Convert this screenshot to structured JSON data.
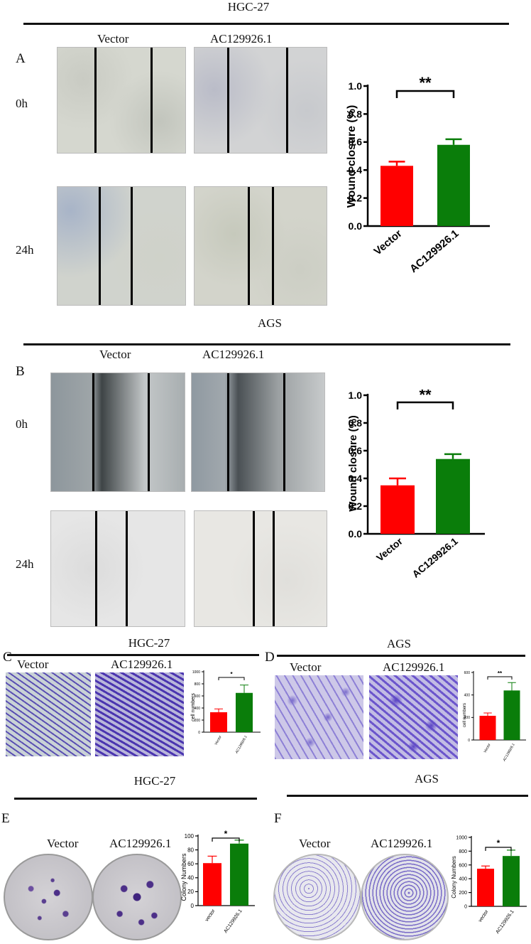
{
  "colors": {
    "vector": "#ff0000",
    "ac": "#0a7d0a"
  },
  "panelA": {
    "title": "HGC-27",
    "label": "A",
    "col1": "Vector",
    "col2": "AC129926.1",
    "row1": "0h",
    "row2": "24h",
    "chart": {
      "type": "bar",
      "ylabel": "Wound closure (%)",
      "categories": [
        "Vector",
        "AC129926.1"
      ],
      "values": [
        0.43,
        0.58
      ],
      "errors": [
        0.03,
        0.04
      ],
      "ylim": [
        0,
        1.0
      ],
      "yticks": [
        "0.0",
        "0.2",
        "0.4",
        "0.6",
        "0.8",
        "1.0"
      ],
      "sig": "**"
    }
  },
  "panelB": {
    "title": "AGS",
    "label": "B",
    "col1": "Vector",
    "col2": "AC129926.1",
    "row1": "0h",
    "row2": "24h",
    "chart": {
      "type": "bar",
      "ylabel": "Wound closure (%)",
      "categories": [
        "Vector",
        "AC129926.1"
      ],
      "values": [
        0.35,
        0.54
      ],
      "errors": [
        0.05,
        0.035
      ],
      "ylim": [
        0,
        1.0
      ],
      "yticks": [
        "0.0",
        "0.2",
        "0.4",
        "0.6",
        "0.8",
        "1.0"
      ],
      "sig": "**"
    }
  },
  "panelC": {
    "title": "HGC-27",
    "label": "C",
    "col1": "Vector",
    "col2": "AC129926.1",
    "chart": {
      "type": "bar",
      "ylabel": "cell numbers",
      "categories": [
        "Vector",
        "AC129926.1"
      ],
      "values": [
        330,
        650
      ],
      "errors": [
        55,
        130
      ],
      "ylim": [
        0,
        1000
      ],
      "yticks": [
        "0",
        "200",
        "400",
        "600",
        "800",
        "1000"
      ],
      "sig": "*"
    }
  },
  "panelD": {
    "title": "AGS",
    "label": "D",
    "col1": "Vector",
    "col2": "AC129926.1",
    "chart": {
      "type": "bar",
      "ylabel": "cell numbers",
      "categories": [
        "Vector",
        "AC129926.1"
      ],
      "values": [
        215,
        440
      ],
      "errors": [
        25,
        70
      ],
      "ylim": [
        0,
        600
      ],
      "yticks": [
        "0",
        "200",
        "400",
        "600"
      ],
      "sig": "**"
    }
  },
  "panelE": {
    "title": "HGC-27",
    "label": "E",
    "col1": "Vector",
    "col2": "AC129926.1",
    "chart": {
      "type": "bar",
      "ylabel": "Colony Numbers",
      "categories": [
        "vector",
        "AC129926.1"
      ],
      "values": [
        61,
        89
      ],
      "errors": [
        10,
        5
      ],
      "ylim": [
        0,
        100
      ],
      "yticks": [
        "0",
        "20",
        "40",
        "60",
        "80",
        "100"
      ],
      "sig": "*"
    }
  },
  "panelF": {
    "title": "AGS",
    "label": "F",
    "col1": "Vector",
    "col2": "AC129926.1",
    "chart": {
      "type": "bar",
      "ylabel": "Colony Numbers",
      "categories": [
        "vector",
        "AC129926.1"
      ],
      "values": [
        545,
        730
      ],
      "errors": [
        40,
        85
      ],
      "ylim": [
        0,
        1000
      ],
      "yticks": [
        "0",
        "200",
        "400",
        "600",
        "800",
        "1000"
      ],
      "sig": "*"
    }
  }
}
